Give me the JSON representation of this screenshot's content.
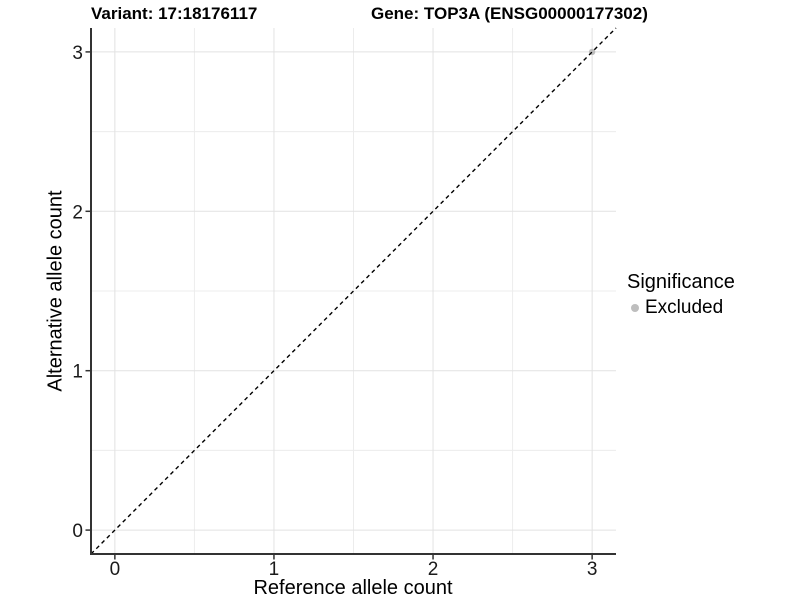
{
  "chart_data": {
    "type": "scatter",
    "title_left": "Variant: 17:18176117",
    "title_right": "Gene: TOP3A (ENSG00000177302)",
    "xlabel": "Reference allele count",
    "ylabel": "Alternative allele count",
    "xlim": [
      -0.15,
      3.15
    ],
    "ylim": [
      -0.15,
      3.15
    ],
    "xticks": [
      0,
      1,
      2,
      3
    ],
    "yticks": [
      0,
      1,
      2,
      3
    ],
    "minor_xticks": [
      0.5,
      1.5,
      2.5
    ],
    "minor_yticks": [
      0.5,
      1.5,
      2.5
    ],
    "grid": true,
    "identity_line": {
      "slope": 1,
      "intercept": 0,
      "style": "dashed",
      "color": "#000000"
    },
    "points": [
      {
        "x": 3,
        "y": 3,
        "significance": "Excluded",
        "color": "#bebebe"
      }
    ],
    "legend": {
      "position": "right",
      "title": "Significance",
      "items": [
        {
          "label": "Excluded",
          "color": "#bebebe"
        }
      ]
    },
    "colors": {
      "background": "#ffffff",
      "grid_major": "#e2e2e2",
      "grid_minor": "#ececec",
      "axis_line": "#333333",
      "tick_text": "#1a1a1a",
      "point_excluded": "#bebebe"
    }
  }
}
